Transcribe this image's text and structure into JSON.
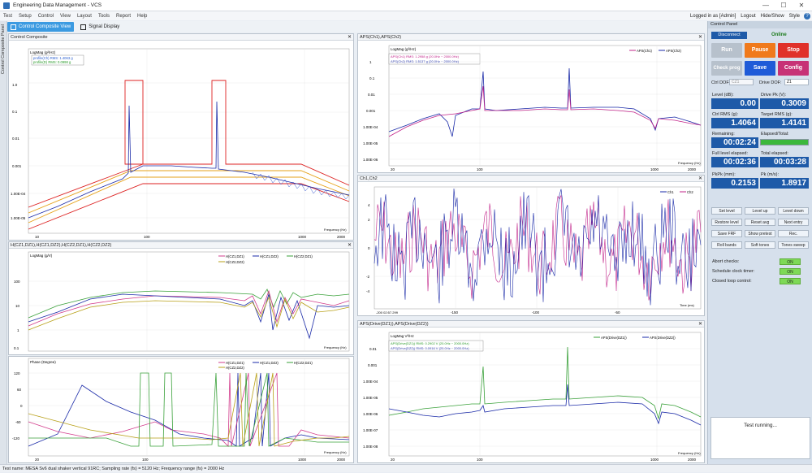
{
  "window": {
    "title": "Engineering Data Management - VCS",
    "min": "—",
    "max": "☐",
    "close": "✕"
  },
  "menu": {
    "items": [
      "Test",
      "Setup",
      "Control",
      "View",
      "Layout",
      "Tools",
      "Report",
      "Help"
    ],
    "logged_in": "Logged in as [Admin]",
    "logout": "Logout",
    "hide_show": "Hide/Show",
    "style": "Style",
    "help": "?"
  },
  "left_tab": "Control Composite Panel",
  "toolbar": {
    "tab1": "Control Composite View",
    "tab2": "Signal Display"
  },
  "panels": {
    "p1": {
      "title": "Control Composite",
      "ylabel": "LogMag (g²/Hz)",
      "legend1": "profile(Ch) RMS: 1.4063 g",
      "legend2": "profile(D) RMS: 0.0998 g",
      "xlabel": "Frequency (Hz)",
      "yticks": [
        "1.0",
        "0.1",
        "0.01",
        "0.001",
        "1.00E-04",
        "1.00E-05"
      ],
      "xticks": [
        "10",
        "100",
        "1000",
        "2000"
      ]
    },
    "p2": {
      "title": "H(CZ1,DZ1),H(CZ1,DZ2),H(CZ2,DZ1),H(CZ2,DZ2)",
      "ylabel": "LogMag (g/V)",
      "legend": [
        "H(CZ1,DZ1)",
        "H(CZ1,DZ2)",
        "H(CZ2,DZ1)",
        "H(CZ2,DZ2)"
      ],
      "yticks": [
        "100",
        "10",
        "1",
        "0.1"
      ],
      "xlabel": "Frequency (Hz)"
    },
    "p3": {
      "ylabel": "Phase (Degree)",
      "legend": [
        "H(CZ1,DZ1)",
        "H(CZ1,DZ2)",
        "H(CZ2,DZ1)",
        "H(CZ2,DZ2)"
      ],
      "yticks": [
        "180",
        "120",
        "60",
        "0",
        "-60",
        "-120",
        "-180"
      ],
      "xticks": [
        "20",
        "100",
        "1000",
        "2000"
      ],
      "xlabel": "Frequency (Hz)"
    },
    "p4": {
      "title": "APS(Ch1),APS(Ch2)",
      "ylabel": "LogMag (g²/Hz)",
      "legend": [
        "APS(Ch1)",
        "APS(Ch2)"
      ],
      "legend1": "APS(Ch1) RMS: 1.2958 g (20.0Hz ~ 2000.0Hz)",
      "legend2": "APS(Ch2) RMS: 1.5137 g (20.0Hz ~ 2000.0Hz)",
      "yticks": [
        "1",
        "0.1",
        "0.01",
        "0.001",
        "1.00E-04",
        "1.00E-05",
        "1.00E-06"
      ],
      "xticks": [
        "20",
        "100",
        "1000",
        "2000"
      ],
      "xlabel": "Frequency (Hz)"
    },
    "p5": {
      "title": "Ch1,Ch2",
      "legend": [
        "Ch1",
        "Ch2"
      ],
      "yticks": [
        "4",
        "3",
        "2",
        "1",
        "0",
        "-1",
        "-2",
        "-3",
        "-4"
      ],
      "xticks": [
        "-200",
        "-150",
        "-100",
        "-50",
        "0"
      ],
      "xlabel": "Time (ms)",
      "x0label": "-200 02:57.299"
    },
    "p6": {
      "title": "APS(Drive(DZ1)),APS(Drive(DZ2))",
      "ylabel": "LogMag V²/Hz",
      "legend": [
        "APS(Drive(DZ1))",
        "APS(Drive(DZ2))"
      ],
      "legend1": "APS(Drive(DZ1)) RMS: 0.2902 V (20.0Hz ~ 2000.0Hz)",
      "legend2": "APS(Drive(DZ2)) RMS: 0.0916 V (20.0Hz ~ 2000.0Hz)",
      "yticks": [
        "0.01",
        "0.001",
        "1.00E-04",
        "1.00E-05",
        "1.00E-06",
        "1.00E-07",
        "1.00E-08"
      ],
      "xticks": [
        "20",
        "100",
        "1000",
        "2000"
      ],
      "xlabel": "Frequency (Hz)"
    }
  },
  "control_panel": {
    "title": "Control Panel",
    "disconnect": "Disconnect",
    "online": "Online",
    "run": "Run",
    "pause": "Pause",
    "stop": "Stop",
    "check_prog": "Check prog",
    "save": "Save",
    "config": "Config",
    "ctrl_dof_label": "Ctrl DOF:",
    "ctrl_dof": "CZ1",
    "drive_dof_label": "Drive DOF:",
    "drive_dof": "Z1",
    "level_label": "Level (dB):",
    "level": "0.00",
    "drive_pk_label": "Drive Pk (V):",
    "drive_pk": "0.3009",
    "ctrl_rms_label": "Ctrl RMS (g):",
    "ctrl_rms": "1.4064",
    "target_rms_label": "Target RMS (g):",
    "target_rms": "1.4141",
    "remaining_label": "Remaining:",
    "remaining": "00:02:24",
    "elapsed_total_label": "Elapsed/Total:",
    "full_level_label": "Full level elapsed:",
    "full_level": "00:02:36",
    "total_elapsed_label": "Total elapsed:",
    "total_elapsed": "00:03:28",
    "pkpk_label": "PkPk (mm):",
    "pkpk": "0.2153",
    "pk_label": "Pk (m/s):",
    "pk": "1.8917",
    "buttons": [
      "Set level",
      "Level up",
      "Level down",
      "Restore level",
      "Reset avg",
      "Next entry",
      "Save FRF",
      "Show pretest",
      "Rec.",
      "Roll bands",
      "Soft tones",
      "Tones sweep"
    ],
    "abort_checks": "Abort checks:",
    "schedule_timer": "Schedule clock timer:",
    "closed_loop": "Closed loop control:",
    "on": "ON",
    "status": "Test running..."
  },
  "statusbar": "Test name: MESA Sv6 dual shaker vertical 91RC; Sampling rate (fs) = 5120 Hz; Frequency range (fs) = 2000 Hz",
  "colors": {
    "accent": "#3b9ae1",
    "pause": "#f07a1c",
    "stop": "#e0312a",
    "save": "#1f5bd8",
    "config": "#c73276",
    "value_bg": "#1e5aa8"
  }
}
